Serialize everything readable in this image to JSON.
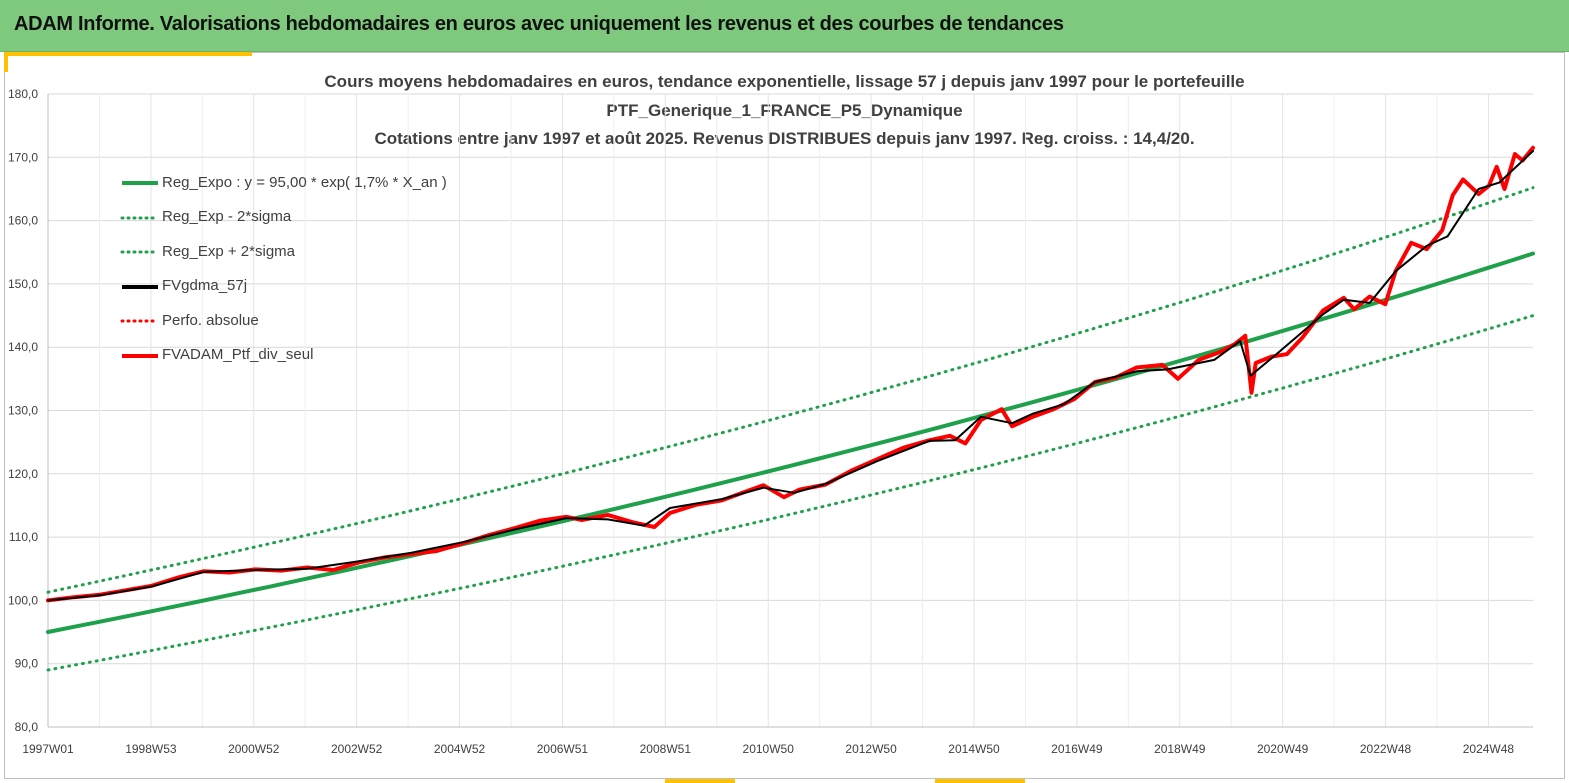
{
  "header": {
    "title": "ADAM Informe. Valorisations hebdomadaires en euros avec uniquement les revenus et des courbes de tendances"
  },
  "chart_data": {
    "type": "line",
    "title_lines": [
      "Cours moyens hebdomadaires  en euros, tendance exponentielle, lissage 57 j depuis janv 1997 pour le portefeuille",
      "PTF_Generique_1_FRANCE_P5_Dynamique",
      "Cotations  entre janv 1997 et août 2025. Revenus DISTRIBUES depuis janv 1997. Reg. croiss. : 14,4/20."
    ],
    "xlabel": "",
    "ylabel": "",
    "x_ticks": [
      "1997W01",
      "1998W53",
      "2000W52",
      "2002W52",
      "2004W52",
      "2006W51",
      "2008W51",
      "2010W50",
      "2012W50",
      "2014W50",
      "2016W49",
      "2018W49",
      "2020W49",
      "2022W48",
      "2024W48"
    ],
    "x_range": [
      1997.0,
      2025.65
    ],
    "y_ticks": [
      "80,0",
      "90,0",
      "100,0",
      "110,0",
      "120,0",
      "130,0",
      "140,0",
      "150,0",
      "160,0",
      "170,0",
      "180,0"
    ],
    "ylim": [
      80,
      180
    ],
    "grid": true,
    "legend_position": "top-left",
    "series": [
      {
        "name": "Reg_Expo : y = 95,00 * exp( 1,7% *  X_an )",
        "color": "#1fa04a",
        "style": "solid",
        "width": 4,
        "x": [
          1997.0,
          2025.65
        ],
        "values": [
          95.0,
          154.8
        ]
      },
      {
        "name": "Reg_Exp - 2*sigma",
        "color": "#1fa04a",
        "style": "dotted",
        "width": 3,
        "x": [
          1997.0,
          2025.65
        ],
        "values": [
          89.0,
          145.0
        ]
      },
      {
        "name": "Reg_Exp + 2*sigma",
        "color": "#1fa04a",
        "style": "dotted",
        "width": 3,
        "x": [
          1997.0,
          2025.65
        ],
        "values": [
          101.3,
          165.2
        ]
      },
      {
        "name": "FVgdma_57j",
        "color": "#000000",
        "style": "solid",
        "width": 2,
        "x": [
          1997.0,
          1998.0,
          1999.0,
          2000.0,
          2001.0,
          2002.0,
          2003.0,
          2004.0,
          2005.0,
          2006.0,
          2007.0,
          2007.8,
          2008.5,
          2009.0,
          2010.0,
          2010.8,
          2011.4,
          2012.0,
          2013.0,
          2014.0,
          2014.5,
          2015.0,
          2015.6,
          2016.0,
          2016.6,
          2017.2,
          2018.0,
          2018.6,
          2019.5,
          2020.0,
          2020.2,
          2020.6,
          2021.0,
          2021.6,
          2022.0,
          2022.5,
          2023.0,
          2023.6,
          2024.0,
          2024.6,
          2025.0,
          2025.65
        ],
        "values": [
          100.0,
          100.8,
          102.2,
          104.5,
          104.8,
          105.0,
          106.2,
          107.5,
          109.2,
          111.2,
          113.0,
          112.8,
          111.8,
          114.6,
          116.0,
          117.8,
          117.0,
          118.4,
          122.0,
          125.2,
          125.3,
          129.0,
          128.0,
          129.5,
          131.0,
          134.5,
          136.2,
          136.5,
          138.0,
          141.0,
          135.5,
          138.2,
          141.0,
          145.2,
          147.5,
          147.0,
          152.0,
          156.0,
          157.5,
          165.0,
          166.0,
          171.0
        ]
      },
      {
        "name": "Perfo. absolue",
        "color": "#ff0000",
        "style": "dotted",
        "width": 3,
        "x": [],
        "values": []
      },
      {
        "name": "FVADAM_Ptf_div_seul",
        "color": "#ff0000",
        "style": "solid",
        "width": 4,
        "x": [
          1997.0,
          1997.5,
          1998.0,
          1998.5,
          1999.0,
          1999.5,
          2000.0,
          2000.5,
          2001.0,
          2001.5,
          2002.0,
          2002.5,
          2003.0,
          2003.5,
          2004.0,
          2004.5,
          2005.0,
          2005.5,
          2006.0,
          2006.5,
          2007.0,
          2007.3,
          2007.8,
          2008.3,
          2008.7,
          2009.0,
          2009.5,
          2010.0,
          2010.5,
          2010.8,
          2011.2,
          2011.5,
          2012.0,
          2012.5,
          2013.0,
          2013.5,
          2014.0,
          2014.4,
          2014.7,
          2015.0,
          2015.4,
          2015.6,
          2016.0,
          2016.4,
          2016.8,
          2017.2,
          2017.6,
          2018.0,
          2018.5,
          2018.8,
          2019.2,
          2019.6,
          2019.9,
          2020.1,
          2020.22,
          2020.3,
          2020.6,
          2020.9,
          2021.2,
          2021.6,
          2022.0,
          2022.2,
          2022.5,
          2022.8,
          2023.0,
          2023.3,
          2023.6,
          2023.9,
          2024.1,
          2024.3,
          2024.6,
          2024.8,
          2024.95,
          2025.1,
          2025.3,
          2025.45,
          2025.65
        ],
        "values": [
          100.0,
          100.5,
          100.9,
          101.6,
          102.3,
          103.6,
          104.6,
          104.4,
          104.9,
          104.7,
          105.2,
          104.8,
          106.0,
          106.8,
          107.3,
          107.8,
          109.0,
          110.3,
          111.4,
          112.6,
          113.2,
          112.7,
          113.5,
          112.3,
          111.6,
          113.8,
          115.1,
          115.8,
          117.3,
          118.2,
          116.3,
          117.5,
          118.3,
          120.5,
          122.3,
          124.1,
          125.3,
          126.0,
          124.8,
          128.5,
          130.2,
          127.5,
          129.0,
          130.2,
          131.8,
          134.5,
          135.2,
          136.8,
          137.2,
          135.0,
          138.0,
          139.2,
          140.5,
          141.8,
          132.8,
          137.5,
          138.5,
          138.9,
          141.5,
          145.8,
          147.8,
          146.0,
          148.0,
          146.8,
          152.0,
          156.5,
          155.5,
          158.5,
          164.0,
          166.5,
          164.2,
          165.5,
          168.5,
          165.0,
          170.5,
          169.5,
          171.5
        ]
      }
    ]
  }
}
